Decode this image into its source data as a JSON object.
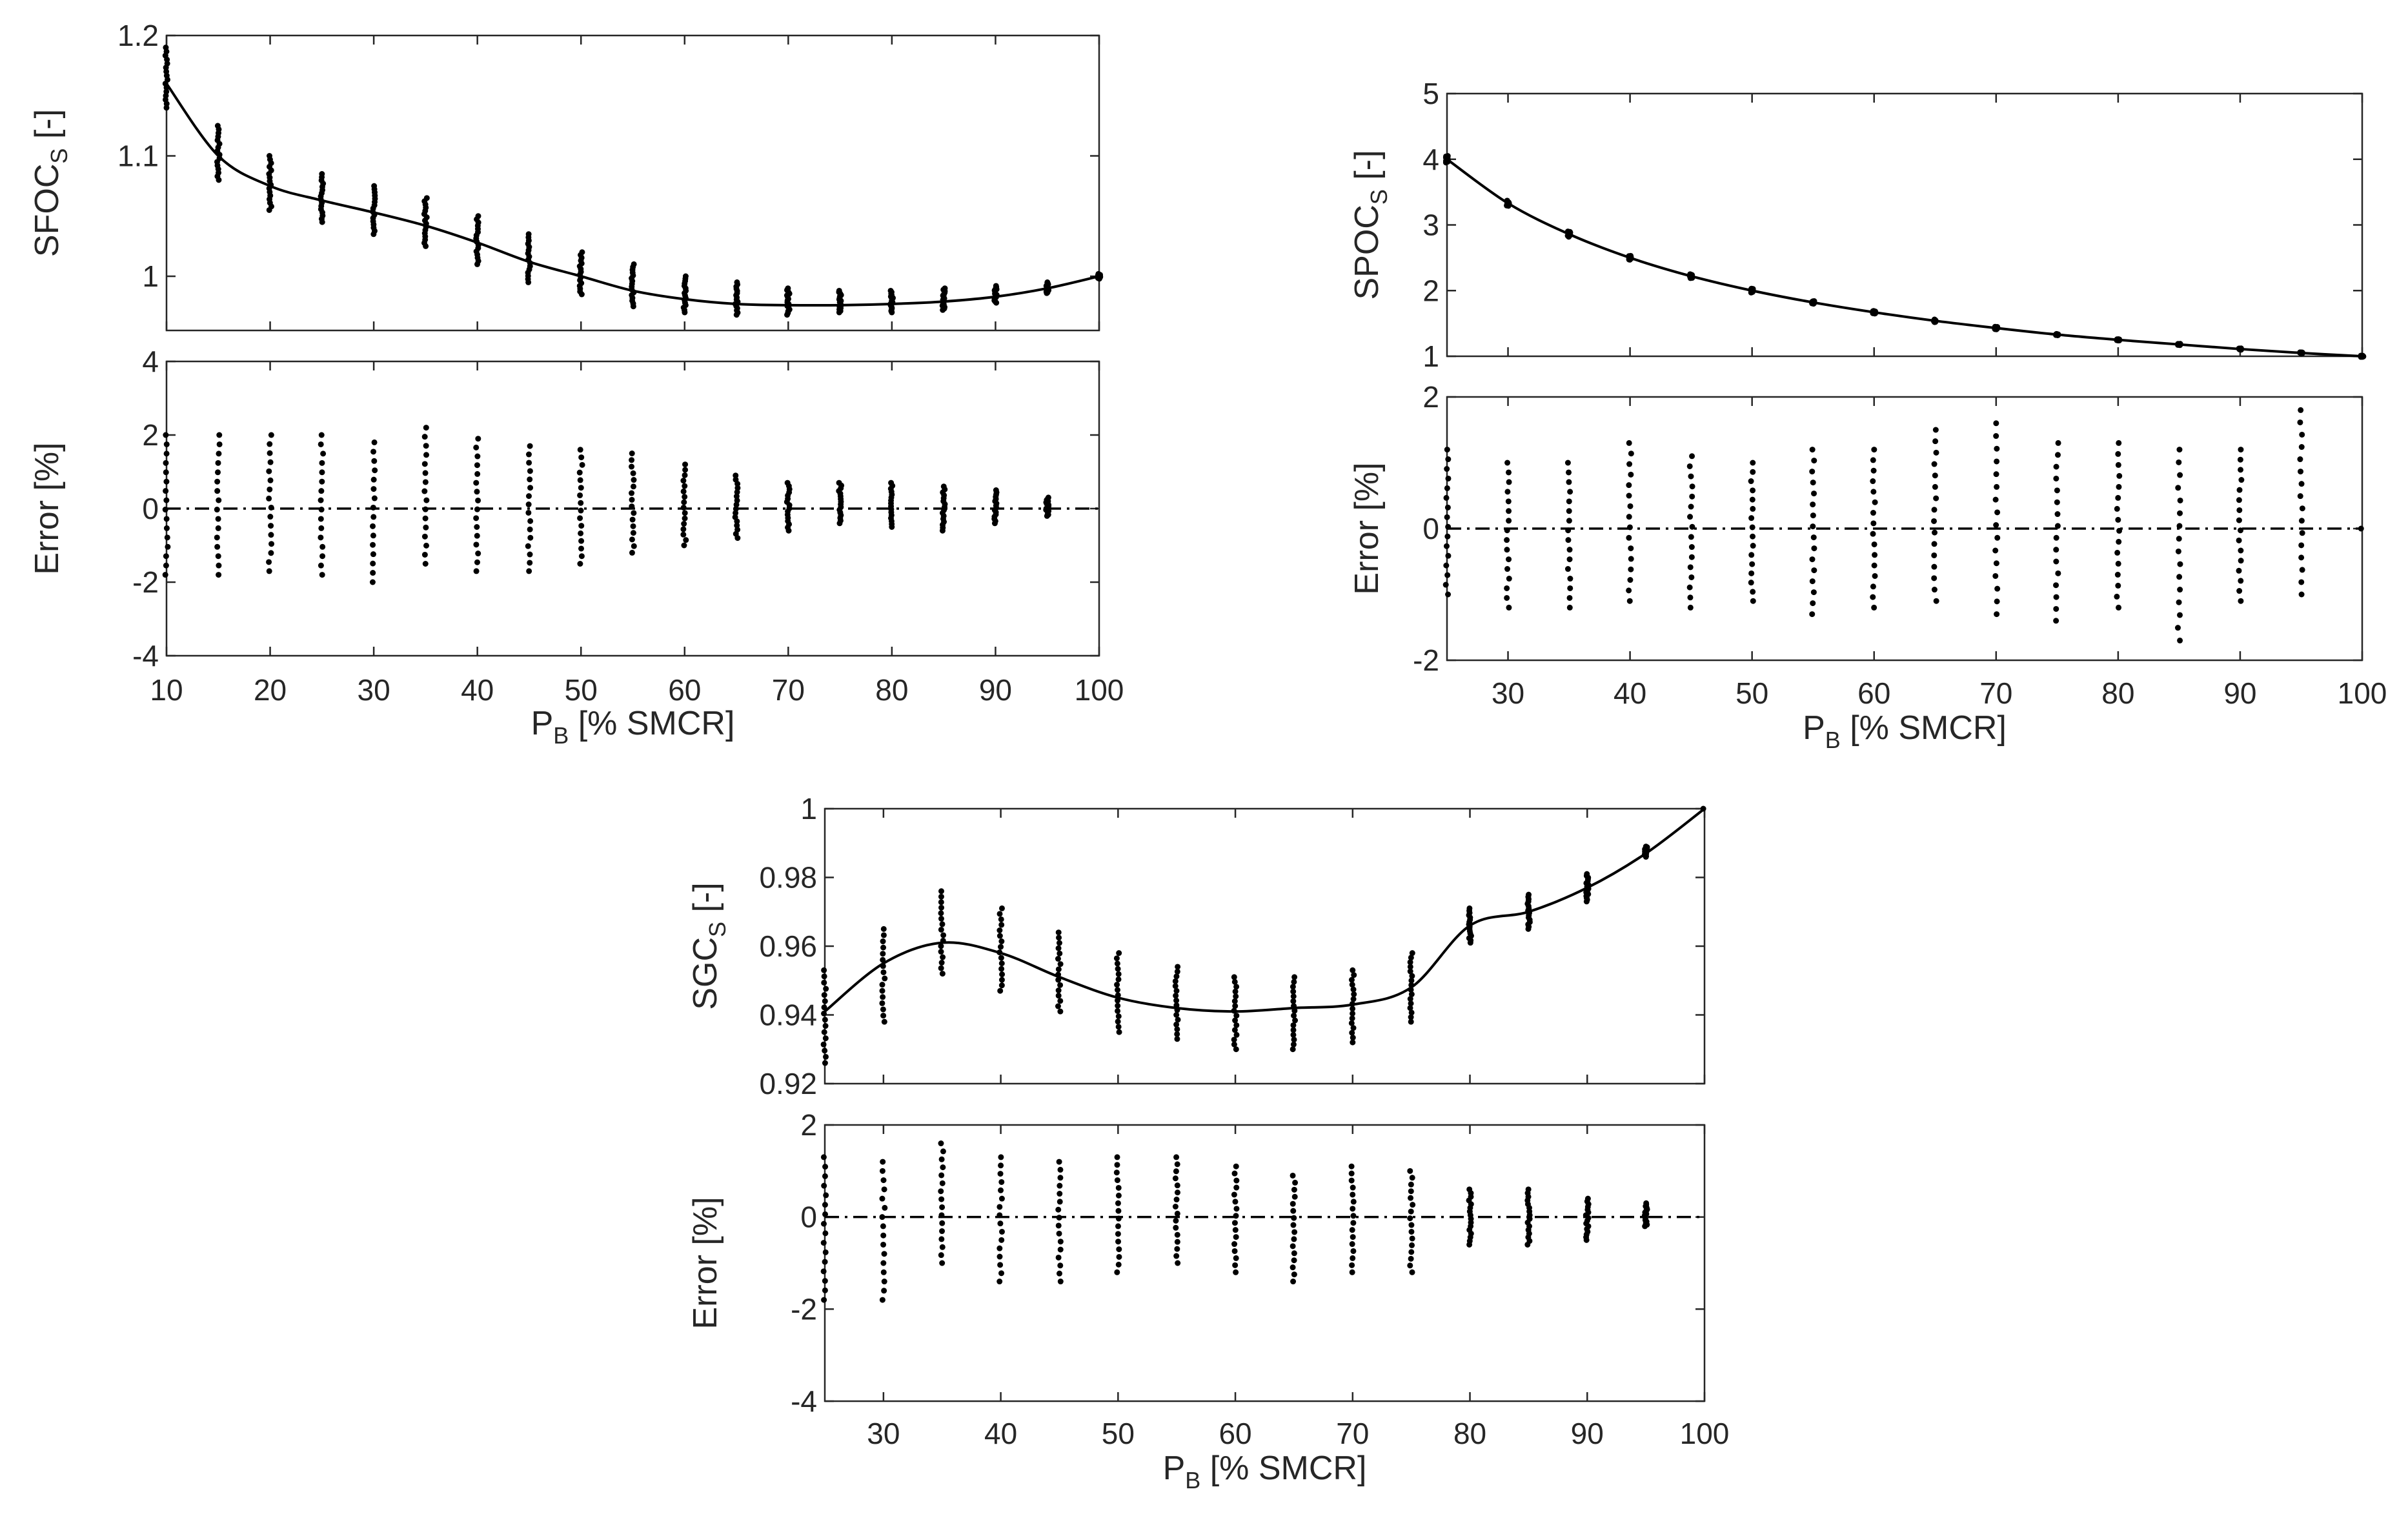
{
  "chart_data": [
    {
      "type": "scatter",
      "id": "sfoc",
      "x_label": {
        "main": "P",
        "sub": "B",
        "rest": " [% SMCR]"
      },
      "x_ticks": [
        "10",
        "20",
        "30",
        "40",
        "50",
        "60",
        "70",
        "80",
        "90",
        "100"
      ],
      "xlim": [
        10,
        100
      ],
      "top": {
        "y_label": {
          "main": "SFOC",
          "sub": "S",
          "rest": " [-]"
        },
        "ylim": [
          0.955,
          1.2
        ],
        "y_ticks": [
          "1",
          "1.1",
          "1.2"
        ],
        "fit_curve": {
          "x": [
            10,
            15,
            20,
            25,
            30,
            35,
            40,
            45,
            50,
            55,
            60,
            65,
            70,
            75,
            80,
            85,
            90,
            95,
            100
          ],
          "y": [
            1.16,
            1.1,
            1.075,
            1.063,
            1.053,
            1.042,
            1.028,
            1.012,
            1.0,
            0.988,
            0.981,
            0.977,
            0.976,
            0.976,
            0.977,
            0.979,
            0.983,
            0.99,
            1.0
          ]
        },
        "scatter": {
          "x": [
            10,
            15,
            20,
            25,
            30,
            35,
            40,
            45,
            50,
            55,
            60,
            65,
            70,
            75,
            80,
            85,
            90,
            95,
            100
          ],
          "y_min": [
            1.14,
            1.08,
            1.055,
            1.045,
            1.035,
            1.025,
            1.01,
            0.995,
            0.985,
            0.975,
            0.97,
            0.968,
            0.968,
            0.97,
            0.97,
            0.972,
            0.978,
            0.986,
            0.998
          ],
          "y_max": [
            1.19,
            1.125,
            1.1,
            1.085,
            1.075,
            1.065,
            1.05,
            1.035,
            1.02,
            1.01,
            1.0,
            0.995,
            0.99,
            0.988,
            0.988,
            0.99,
            0.992,
            0.995,
            1.002
          ]
        }
      },
      "bottom": {
        "y_label": {
          "main": "Error [%]",
          "sub": "",
          "rest": ""
        },
        "ylim": [
          -4,
          4
        ],
        "y_ticks": [
          "-4",
          "-2",
          "0",
          "2",
          "4"
        ],
        "scatter": {
          "x": [
            10,
            15,
            20,
            25,
            30,
            35,
            40,
            45,
            50,
            55,
            60,
            65,
            70,
            75,
            80,
            85,
            90,
            95
          ],
          "y_min": [
            -1.8,
            -1.8,
            -1.7,
            -1.8,
            -2.0,
            -1.5,
            -1.7,
            -1.7,
            -1.5,
            -1.2,
            -1.0,
            -0.8,
            -0.6,
            -0.4,
            -0.5,
            -0.6,
            -0.4,
            -0.2
          ],
          "y_max": [
            2.0,
            2.0,
            2.0,
            2.0,
            1.8,
            2.2,
            1.9,
            1.7,
            1.6,
            1.5,
            1.2,
            0.9,
            0.7,
            0.7,
            0.7,
            0.6,
            0.5,
            0.3
          ]
        }
      }
    },
    {
      "type": "scatter",
      "id": "spoc",
      "x_label": {
        "main": "P",
        "sub": "B",
        "rest": " [% SMCR]"
      },
      "x_ticks": [
        "30",
        "40",
        "50",
        "60",
        "70",
        "80",
        "90",
        "100"
      ],
      "xlim": [
        25,
        100
      ],
      "top": {
        "y_label": {
          "main": "SPOC",
          "sub": "S",
          "rest": " [-]"
        },
        "ylim": [
          1,
          5
        ],
        "y_ticks": [
          "1",
          "2",
          "3",
          "4",
          "5"
        ],
        "fit_curve": {
          "x": [
            25,
            30,
            35,
            40,
            45,
            50,
            55,
            60,
            65,
            70,
            75,
            80,
            85,
            90,
            95,
            100
          ],
          "y": [
            4.0,
            3.33,
            2.86,
            2.5,
            2.22,
            2.0,
            1.82,
            1.67,
            1.54,
            1.43,
            1.33,
            1.25,
            1.18,
            1.11,
            1.05,
            1.0
          ]
        },
        "scatter": {
          "x": [
            25,
            30,
            35,
            40,
            45,
            50,
            55,
            60,
            65,
            70,
            75,
            80,
            85,
            90,
            95,
            100
          ],
          "y_min": [
            3.95,
            3.29,
            2.82,
            2.47,
            2.19,
            1.97,
            1.8,
            1.65,
            1.52,
            1.41,
            1.32,
            1.24,
            1.17,
            1.1,
            1.04,
            0.99
          ],
          "y_max": [
            4.05,
            3.37,
            2.9,
            2.53,
            2.25,
            2.03,
            1.84,
            1.69,
            1.56,
            1.45,
            1.34,
            1.26,
            1.19,
            1.12,
            1.06,
            1.01
          ]
        }
      },
      "bottom": {
        "y_label": {
          "main": "Error [%]",
          "sub": "",
          "rest": ""
        },
        "ylim": [
          -2,
          2
        ],
        "y_ticks": [
          "-2",
          "0",
          "2"
        ],
        "scatter": {
          "x": [
            25,
            30,
            35,
            40,
            45,
            50,
            55,
            60,
            65,
            70,
            75,
            80,
            85,
            90,
            95,
            100
          ],
          "y_min": [
            -1.0,
            -1.2,
            -1.2,
            -1.1,
            -1.2,
            -1.1,
            -1.3,
            -1.2,
            -1.1,
            -1.3,
            -1.4,
            -1.2,
            -1.7,
            -1.1,
            -1.0,
            0
          ],
          "y_max": [
            1.2,
            1.0,
            1.0,
            1.3,
            1.1,
            1.0,
            1.2,
            1.2,
            1.5,
            1.6,
            1.3,
            1.3,
            1.2,
            1.2,
            1.8,
            0
          ]
        }
      }
    },
    {
      "type": "scatter",
      "id": "sgc",
      "x_label": {
        "main": "P",
        "sub": "B",
        "rest": " [% SMCR]"
      },
      "x_ticks": [
        "30",
        "40",
        "50",
        "60",
        "70",
        "80",
        "90",
        "100"
      ],
      "xlim": [
        25,
        100
      ],
      "top": {
        "y_label": {
          "main": "SGC",
          "sub": "S",
          "rest": " [-]"
        },
        "ylim": [
          0.92,
          1
        ],
        "y_ticks": [
          "0.92",
          "0.94",
          "0.96",
          "0.98",
          "1"
        ],
        "fit_curve": {
          "x": [
            25,
            30,
            35,
            40,
            45,
            50,
            55,
            60,
            65,
            70,
            75,
            80,
            85,
            90,
            95,
            100
          ],
          "y": [
            0.941,
            0.955,
            0.961,
            0.958,
            0.951,
            0.945,
            0.942,
            0.941,
            0.942,
            0.943,
            0.948,
            0.966,
            0.97,
            0.977,
            0.987,
            1.0
          ]
        },
        "scatter": {
          "x": [
            25,
            30,
            35,
            40,
            45,
            50,
            55,
            60,
            65,
            70,
            75,
            80,
            85,
            90,
            95,
            100
          ],
          "y_min": [
            0.926,
            0.938,
            0.952,
            0.947,
            0.941,
            0.935,
            0.933,
            0.93,
            0.93,
            0.932,
            0.938,
            0.961,
            0.965,
            0.973,
            0.986,
            1.0
          ],
          "y_max": [
            0.953,
            0.965,
            0.976,
            0.971,
            0.964,
            0.958,
            0.954,
            0.951,
            0.951,
            0.953,
            0.958,
            0.971,
            0.975,
            0.981,
            0.989,
            1.0
          ]
        }
      },
      "bottom": {
        "y_label": {
          "main": "Error [%]",
          "sub": "",
          "rest": ""
        },
        "ylim": [
          -4,
          2
        ],
        "y_ticks": [
          "-4",
          "-2",
          "0",
          "2"
        ],
        "scatter": {
          "x": [
            25,
            30,
            35,
            40,
            45,
            50,
            55,
            60,
            65,
            70,
            75,
            80,
            85,
            90,
            95
          ],
          "y_min": [
            -1.8,
            -1.8,
            -1.0,
            -1.4,
            -1.4,
            -1.2,
            -1.0,
            -1.2,
            -1.4,
            -1.2,
            -1.2,
            -0.6,
            -0.6,
            -0.5,
            -0.2
          ],
          "y_max": [
            1.3,
            1.2,
            1.6,
            1.3,
            1.2,
            1.3,
            1.3,
            1.1,
            0.9,
            1.1,
            1.0,
            0.6,
            0.6,
            0.4,
            0.3
          ]
        }
      }
    }
  ]
}
